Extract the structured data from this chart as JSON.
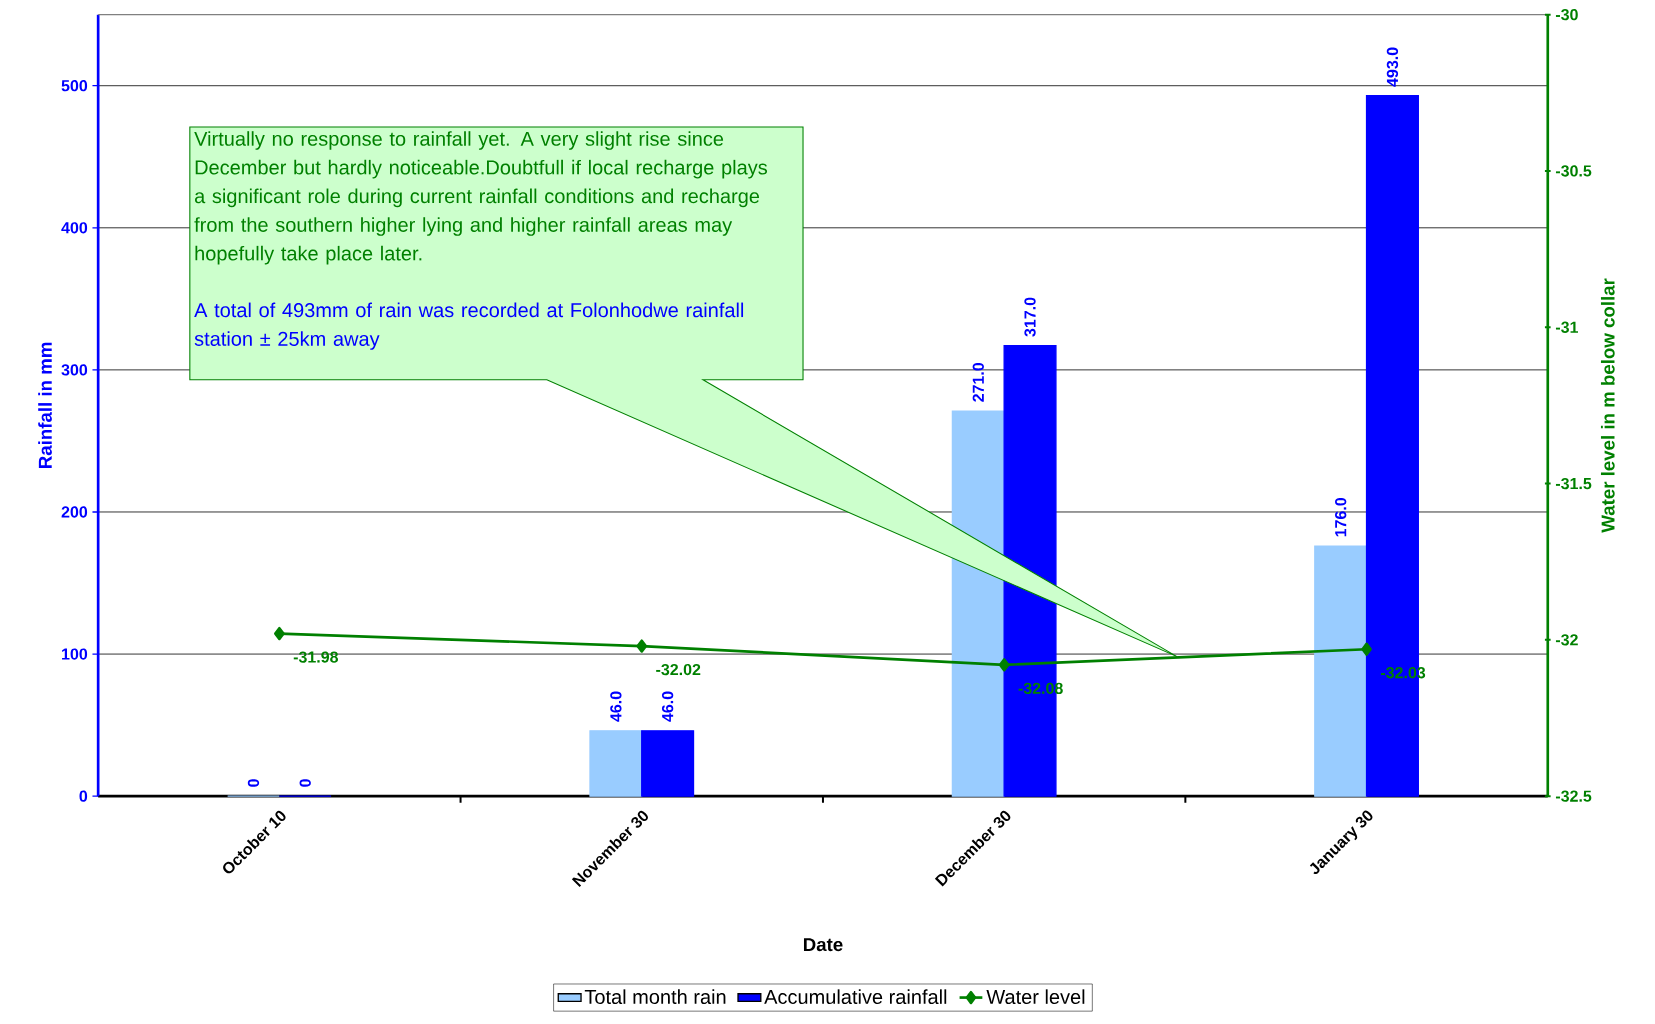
{
  "chart_data": {
    "type": "bar",
    "xlabel": "Date",
    "ylabel": "Rainfall in mm",
    "y2label": "Water level in m below collar",
    "categories": [
      "October 10",
      "November 30",
      "December 30",
      "January 30"
    ],
    "series": [
      {
        "name": "Total month rain",
        "color": "#99ccff",
        "values": [
          0,
          46,
          271,
          176
        ],
        "value_labels": [
          "0",
          "46.0",
          "271.0",
          "176.0"
        ]
      },
      {
        "name": "Accumulative rainfall",
        "color": "#0000ff",
        "values": [
          0,
          46,
          317,
          493
        ],
        "value_labels": [
          "0",
          "46.0",
          "317.0",
          "493.0"
        ]
      },
      {
        "name": "Water level",
        "type": "line",
        "axis": "y2",
        "color": "#008000",
        "values": [
          -31.98,
          -32.02,
          -32.08,
          -32.03
        ],
        "value_labels": [
          "-31.98",
          "-32.02",
          "-32.08",
          "-32.03"
        ]
      }
    ],
    "ylim": [
      0,
      550
    ],
    "yticks": [
      0,
      100,
      200,
      300,
      400,
      500
    ],
    "y2lim": [
      -32.5,
      -30
    ],
    "y2ticks": [
      -32.5,
      -32,
      -31.5,
      -31,
      -30.5,
      -30
    ],
    "grid": "y",
    "legend": "bottom",
    "marker": "diamond",
    "line_style": "solid",
    "annotations": [
      "Virtually no response to rainfall yet. A very slight rise since December but hardly noticeable.Doubtfull if local recharge plays a significant role during current rainfall conditions and recharge from the southern higher lying and higher rainfall areas may hopefully take place later.",
      "A total of 493mm of rain was recorded at Folonhodwe rainfall station ± 25km away"
    ]
  }
}
